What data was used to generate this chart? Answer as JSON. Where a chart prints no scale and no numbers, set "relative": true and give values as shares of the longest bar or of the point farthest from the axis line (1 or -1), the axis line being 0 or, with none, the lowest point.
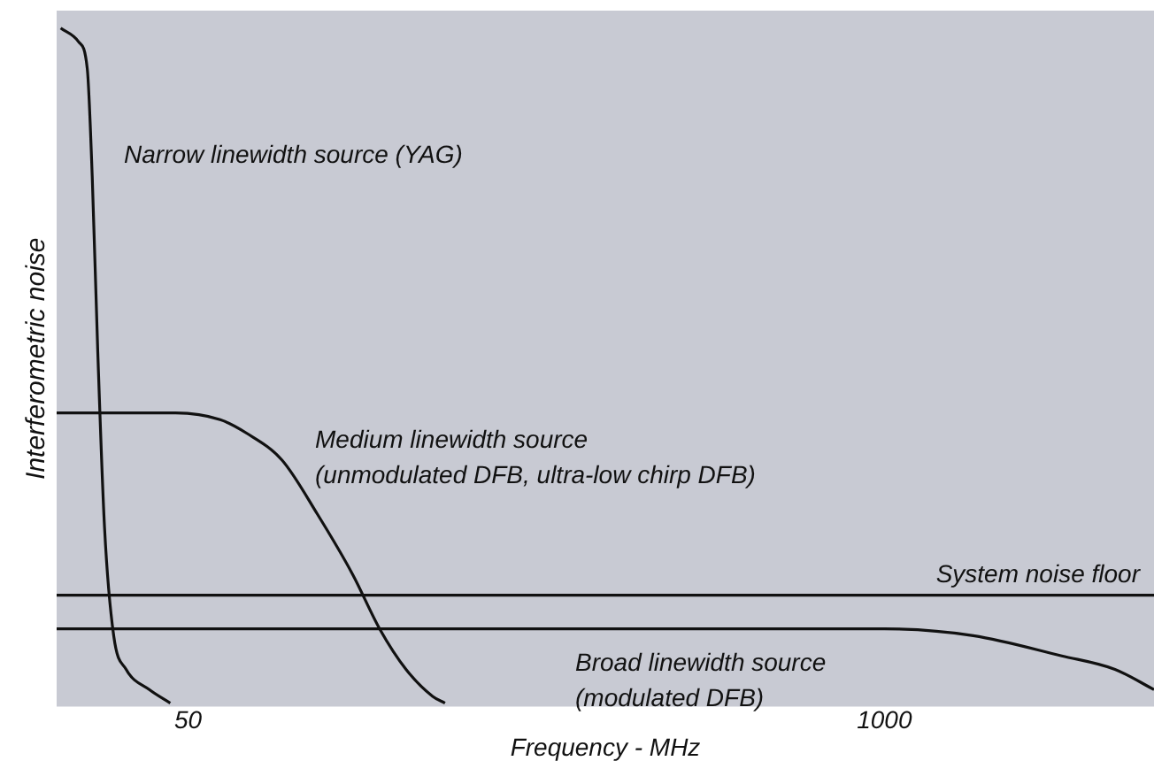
{
  "chart_data": {
    "type": "line",
    "relative": true,
    "log": "x",
    "xlabel": "Frequency - MHz",
    "ylabel": "Interferometric noise",
    "xlim": [
      28.4,
      3190
    ],
    "xticks": [
      50,
      1000
    ],
    "grid": false,
    "legend": false,
    "marker": "none",
    "line_style": "solid",
    "series": [
      {
        "name": "Narrow linewidth source (YAG)",
        "color": "#111111",
        "x": [
          28.9,
          31.2,
          32.4,
          33.1,
          33.9,
          34.9,
          36.3,
          38.3,
          42.3,
          46.3
        ],
        "values": [
          1.0,
          0.98,
          0.94,
          0.78,
          0.52,
          0.26,
          0.1,
          0.05,
          0.02,
          0
        ]
      },
      {
        "name": "Medium linewidth source\n(unmodulated DFB, ultra-low chirp DFB)",
        "color": "#111111",
        "x": [
          28.4,
          47.4,
          57.4,
          64.3,
          74.9,
          87.2,
          101.6,
          114,
          127.7,
          143.2,
          151
        ],
        "values": [
          0.43,
          0.43,
          0.42,
          0.4,
          0.36,
          0.28,
          0.19,
          0.11,
          0.05,
          0.01,
          0
        ]
      },
      {
        "name": "Broad linewidth source\n(modulated DFB)",
        "color": "#111111",
        "x": [
          28.4,
          1000,
          1466,
          2145,
          2697,
          3190
        ],
        "values": [
          0.11,
          0.11,
          0.1,
          0.07,
          0.05,
          0.02
        ]
      }
    ],
    "ref_lines": [
      {
        "axis": "y",
        "value": 0.16,
        "label": "System noise floor",
        "color": "#111111"
      }
    ]
  }
}
